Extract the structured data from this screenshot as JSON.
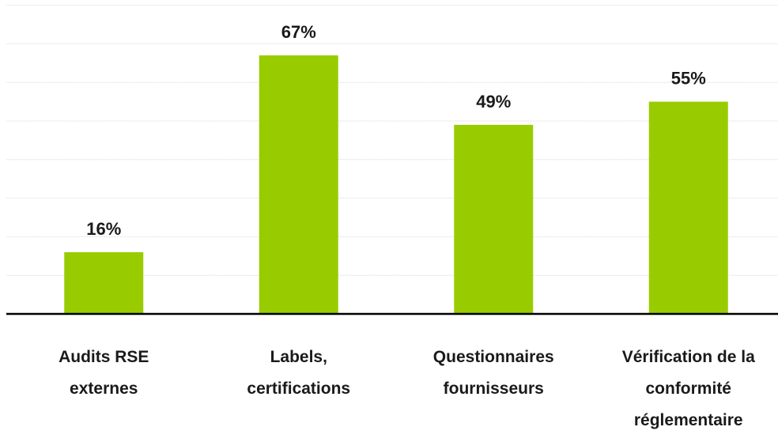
{
  "chart_data": {
    "type": "bar",
    "categories": [
      [
        "Audits RSE",
        "externes"
      ],
      [
        "Labels,",
        "certifications"
      ],
      [
        "Questionnaires",
        "fournisseurs"
      ],
      [
        "Vérification de la",
        "conformité",
        "réglementaire"
      ]
    ],
    "values": [
      16,
      67,
      49,
      55
    ],
    "value_labels": [
      "16%",
      "67%",
      "49%",
      "55%"
    ],
    "ylim": [
      0,
      80
    ],
    "grid": true,
    "bar_color": "#99cc00"
  }
}
